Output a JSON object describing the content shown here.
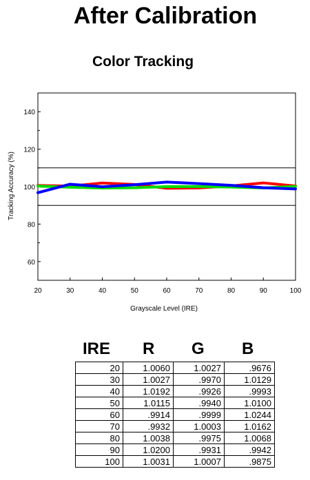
{
  "page": {
    "title": "After Calibration"
  },
  "chart_data": {
    "type": "line",
    "title": "Color Tracking",
    "xlabel": "Grayscale Level (IRE)",
    "ylabel": "Tracking Accuracy (%)",
    "x": [
      20,
      30,
      40,
      50,
      60,
      70,
      80,
      90,
      100
    ],
    "xlim": [
      20,
      100
    ],
    "ylim": [
      50,
      150
    ],
    "xticks": [
      20,
      30,
      40,
      50,
      60,
      70,
      80,
      90,
      100
    ],
    "yticks": [
      60,
      80,
      100,
      120,
      140
    ],
    "reference_lines": [
      110,
      90
    ],
    "grid": false,
    "series": [
      {
        "color": "#ff0000",
        "values": [
          100.6,
          100.27,
          101.92,
          101.15,
          99.14,
          99.32,
          100.38,
          102.0,
          100.31
        ]
      },
      {
        "color": "#00dd00",
        "values": [
          100.27,
          99.7,
          99.26,
          99.4,
          99.99,
          100.03,
          99.75,
          99.31,
          100.07
        ]
      },
      {
        "color": "#0000ff",
        "values": [
          96.76,
          101.29,
          99.93,
          101.0,
          102.44,
          101.62,
          100.68,
          99.42,
          98.75
        ]
      }
    ]
  },
  "table": {
    "headers": [
      "IRE",
      "R",
      "G",
      "B"
    ],
    "rows": [
      [
        "20",
        "1.0060",
        "1.0027",
        ".9676"
      ],
      [
        "30",
        "1.0027",
        ".9970",
        "1.0129"
      ],
      [
        "40",
        "1.0192",
        ".9926",
        ".9993"
      ],
      [
        "50",
        "1.0115",
        ".9940",
        "1.0100"
      ],
      [
        "60",
        ".9914",
        ".9999",
        "1.0244"
      ],
      [
        "70",
        ".9932",
        "1.0003",
        "1.0162"
      ],
      [
        "80",
        "1.0038",
        ".9975",
        "1.0068"
      ],
      [
        "90",
        "1.0200",
        ".9931",
        ".9942"
      ],
      [
        "100",
        "1.0031",
        "1.0007",
        ".9875"
      ]
    ]
  }
}
